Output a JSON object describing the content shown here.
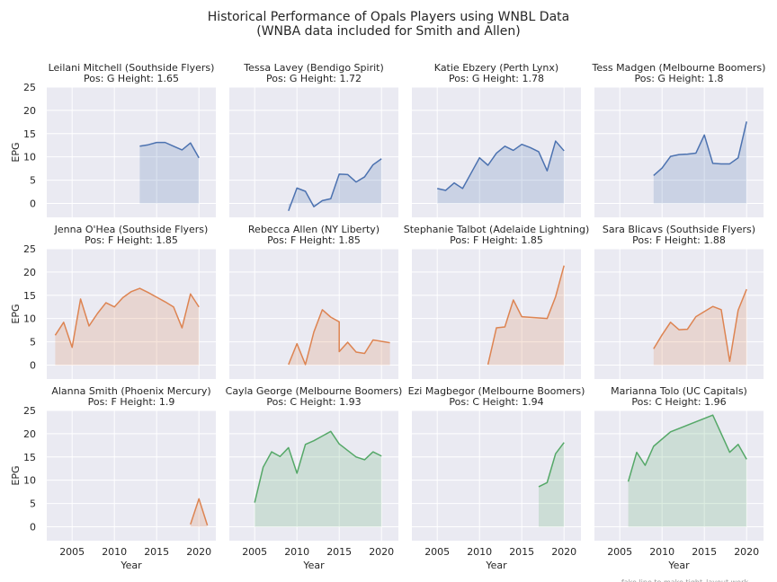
{
  "figure": {
    "title_line1": "Historical Performance of Opals Players using WNBL Data",
    "title_line2": "(WNBA data included for Smith and Allen)",
    "footer_note": "fake line to make tight_layout work"
  },
  "colors": {
    "guard": "#4c72b0",
    "forward": "#dd8452",
    "center": "#55a868",
    "panel_bg": "#eaeaf2",
    "grid": "#ffffff"
  },
  "chart_data": [
    {
      "type": "area",
      "title": "Leilani Mitchell (Southside Flyers)",
      "subtitle": "Pos: G  Height: 1.65",
      "position_group": "G",
      "xlabel": "",
      "ylabel": "EPG",
      "xlim": [
        2002,
        2022
      ],
      "ylim": [
        -3,
        25
      ],
      "x": [
        2013,
        2014,
        2015,
        2016,
        2017,
        2018,
        2019,
        2020
      ],
      "y": [
        12.3,
        12.6,
        13.1,
        13.1,
        12.3,
        11.5,
        13.0,
        9.8
      ]
    },
    {
      "type": "area",
      "title": "Tessa Lavey (Bendigo Spirit)",
      "subtitle": "Pos: G  Height: 1.72",
      "position_group": "G",
      "xlabel": "",
      "ylabel": "",
      "xlim": [
        2002,
        2022
      ],
      "ylim": [
        -3,
        25
      ],
      "x": [
        2009,
        2010,
        2011,
        2012,
        2013,
        2014,
        2015,
        2016,
        2017,
        2018,
        2019,
        2020
      ],
      "y": [
        -1.6,
        3.3,
        2.6,
        -0.7,
        0.6,
        1.0,
        6.3,
        6.2,
        4.6,
        5.7,
        8.3,
        9.6
      ]
    },
    {
      "type": "area",
      "title": "Katie Ebzery (Perth Lynx)",
      "subtitle": "Pos: G  Height: 1.78",
      "position_group": "G",
      "xlabel": "",
      "ylabel": "",
      "xlim": [
        2002,
        2022
      ],
      "ylim": [
        -3,
        25
      ],
      "x": [
        2005,
        2006,
        2007,
        2008,
        2009,
        2010,
        2011,
        2012,
        2013,
        2014,
        2015,
        2016,
        2017,
        2018,
        2019,
        2020
      ],
      "y": [
        3.2,
        2.8,
        4.4,
        3.2,
        6.5,
        9.8,
        8.2,
        10.8,
        12.3,
        11.4,
        12.7,
        12.0,
        11.1,
        7.0,
        13.4,
        11.3
      ]
    },
    {
      "type": "area",
      "title": "Tess Madgen (Melbourne Boomers)",
      "subtitle": "Pos: G  Height: 1.8",
      "position_group": "G",
      "xlabel": "",
      "ylabel": "",
      "xlim": [
        2002,
        2022
      ],
      "ylim": [
        -3,
        25
      ],
      "x": [
        2009,
        2010,
        2011,
        2012,
        2013,
        2014,
        2015,
        2016,
        2017,
        2018,
        2019,
        2020
      ],
      "y": [
        6.0,
        7.6,
        10.1,
        10.5,
        10.6,
        10.8,
        14.7,
        8.6,
        8.5,
        8.5,
        9.8,
        17.6
      ]
    },
    {
      "type": "area",
      "title": "Jenna O'Hea (Southside Flyers)",
      "subtitle": "Pos: F  Height: 1.85",
      "position_group": "F",
      "xlabel": "",
      "ylabel": "EPG",
      "xlim": [
        2002,
        2022
      ],
      "ylim": [
        -3,
        25
      ],
      "x": [
        2003,
        2004,
        2005,
        2006,
        2007,
        2008,
        2009,
        2010,
        2011,
        2012,
        2013,
        2014,
        2015,
        2016,
        2017,
        2018,
        2019,
        2020
      ],
      "y": [
        6.4,
        9.2,
        3.8,
        14.2,
        8.4,
        11.1,
        13.4,
        12.5,
        14.5,
        15.8,
        16.5,
        15.6,
        14.6,
        13.6,
        12.5,
        8.0,
        15.3,
        12.5
      ]
    },
    {
      "type": "area",
      "title": "Rebecca Allen (NY Liberty)",
      "subtitle": "Pos: F  Height: 1.85",
      "position_group": "F",
      "xlabel": "",
      "ylabel": "",
      "xlim": [
        2002,
        2022
      ],
      "ylim": [
        -3,
        25
      ],
      "x": [
        2009,
        2010,
        2011,
        2012,
        2013,
        2014,
        2015,
        2015,
        2016,
        2017,
        2018,
        2019,
        2021
      ],
      "y": [
        0.1,
        4.6,
        0.1,
        7.1,
        11.9,
        10.3,
        9.3,
        2.9,
        4.9,
        2.8,
        2.5,
        5.4,
        4.8
      ]
    },
    {
      "type": "area",
      "title": "Stephanie Talbot (Adelaide Lightning)",
      "subtitle": "Pos: F  Height: 1.85",
      "position_group": "F",
      "xlabel": "",
      "ylabel": "",
      "xlim": [
        2002,
        2022
      ],
      "ylim": [
        -3,
        25
      ],
      "x": [
        2011,
        2012,
        2013,
        2014,
        2015,
        2018,
        2019,
        2020
      ],
      "y": [
        0.1,
        8.0,
        8.2,
        14.0,
        10.4,
        10.0,
        14.7,
        21.4
      ]
    },
    {
      "type": "area",
      "title": "Sara Blicavs (Southside Flyers)",
      "subtitle": "Pos: F  Height: 1.88",
      "position_group": "F",
      "xlabel": "",
      "ylabel": "",
      "xlim": [
        2002,
        2022
      ],
      "ylim": [
        -3,
        25
      ],
      "x": [
        2009,
        2010,
        2011,
        2012,
        2013,
        2014,
        2015,
        2016,
        2017,
        2018,
        2019,
        2020
      ],
      "y": [
        3.5,
        6.5,
        9.2,
        7.6,
        7.7,
        10.4,
        11.5,
        12.6,
        11.9,
        0.8,
        11.8,
        16.3
      ]
    },
    {
      "type": "area",
      "title": "Alanna Smith (Phoenix Mercury)",
      "subtitle": "Pos: F  Height: 1.9",
      "position_group": "F",
      "xlabel": "Year",
      "ylabel": "EPG",
      "xlim": [
        2002,
        2022
      ],
      "ylim": [
        -3,
        25
      ],
      "x": [
        2019,
        2020,
        2021
      ],
      "y": [
        0.5,
        6.0,
        0.3
      ]
    },
    {
      "type": "area",
      "title": "Cayla George (Melbourne Boomers)",
      "subtitle": "Pos: C  Height: 1.93",
      "position_group": "C",
      "xlabel": "Year",
      "ylabel": "",
      "xlim": [
        2002,
        2022
      ],
      "ylim": [
        -3,
        25
      ],
      "x": [
        2005,
        2006,
        2007,
        2008,
        2009,
        2010,
        2011,
        2012,
        2013,
        2014,
        2015,
        2016,
        2017,
        2018,
        2019,
        2020
      ],
      "y": [
        5.2,
        12.8,
        16.1,
        15.1,
        17.0,
        11.5,
        17.7,
        18.5,
        19.5,
        20.5,
        17.8,
        16.4,
        15.0,
        14.4,
        16.1,
        15.2
      ]
    },
    {
      "type": "area",
      "title": "Ezi Magbegor (Melbourne Boomers)",
      "subtitle": "Pos: C  Height: 1.94",
      "position_group": "C",
      "xlabel": "Year",
      "ylabel": "",
      "xlim": [
        2002,
        2022
      ],
      "ylim": [
        -3,
        25
      ],
      "x": [
        2017,
        2018,
        2019,
        2020
      ],
      "y": [
        8.6,
        9.5,
        15.7,
        18.1
      ]
    },
    {
      "type": "area",
      "title": "Marianna Tolo (UC Capitals)",
      "subtitle": "Pos: C  Height: 1.96",
      "position_group": "C",
      "xlabel": "Year",
      "ylabel": "",
      "xlim": [
        2002,
        2022
      ],
      "ylim": [
        -3,
        25
      ],
      "x": [
        2006,
        2007,
        2008,
        2009,
        2011,
        2016,
        2018,
        2019,
        2020
      ],
      "y": [
        9.7,
        16.0,
        13.2,
        17.3,
        20.4,
        24.0,
        16.0,
        17.7,
        14.5
      ]
    }
  ]
}
